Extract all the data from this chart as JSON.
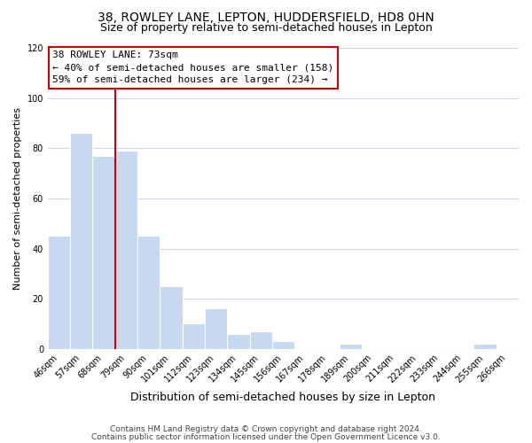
{
  "title": "38, ROWLEY LANE, LEPTON, HUDDERSFIELD, HD8 0HN",
  "subtitle": "Size of property relative to semi-detached houses in Lepton",
  "xlabel": "Distribution of semi-detached houses by size in Lepton",
  "ylabel": "Number of semi-detached properties",
  "categories": [
    "46sqm",
    "57sqm",
    "68sqm",
    "79sqm",
    "90sqm",
    "101sqm",
    "112sqm",
    "123sqm",
    "134sqm",
    "145sqm",
    "156sqm",
    "167sqm",
    "178sqm",
    "189sqm",
    "200sqm",
    "211sqm",
    "222sqm",
    "233sqm",
    "244sqm",
    "255sqm",
    "266sqm"
  ],
  "values": [
    45,
    86,
    77,
    79,
    45,
    25,
    10,
    16,
    6,
    7,
    3,
    0,
    0,
    2,
    0,
    0,
    0,
    0,
    0,
    2,
    0
  ],
  "bar_color": "#c6d9f0",
  "bar_edge_color": "#aec8e8",
  "highlight_line_color": "#cc0000",
  "ylim": [
    0,
    120
  ],
  "yticks": [
    0,
    20,
    40,
    60,
    80,
    100,
    120
  ],
  "annotation_title": "38 ROWLEY LANE: 73sqm",
  "annotation_line1": "← 40% of semi-detached houses are smaller (158)",
  "annotation_line2": "59% of semi-detached houses are larger (234) →",
  "annotation_box_color": "#ffffff",
  "annotation_box_edge_color": "#cc0000",
  "footer_line1": "Contains HM Land Registry data © Crown copyright and database right 2024.",
  "footer_line2": "Contains public sector information licensed under the Open Government Licence v3.0.",
  "background_color": "#ffffff",
  "grid_color": "#ccd9e8",
  "title_fontsize": 10,
  "subtitle_fontsize": 9,
  "xlabel_fontsize": 9,
  "ylabel_fontsize": 8,
  "tick_fontsize": 7,
  "annotation_fontsize": 8,
  "footer_fontsize": 6.5
}
